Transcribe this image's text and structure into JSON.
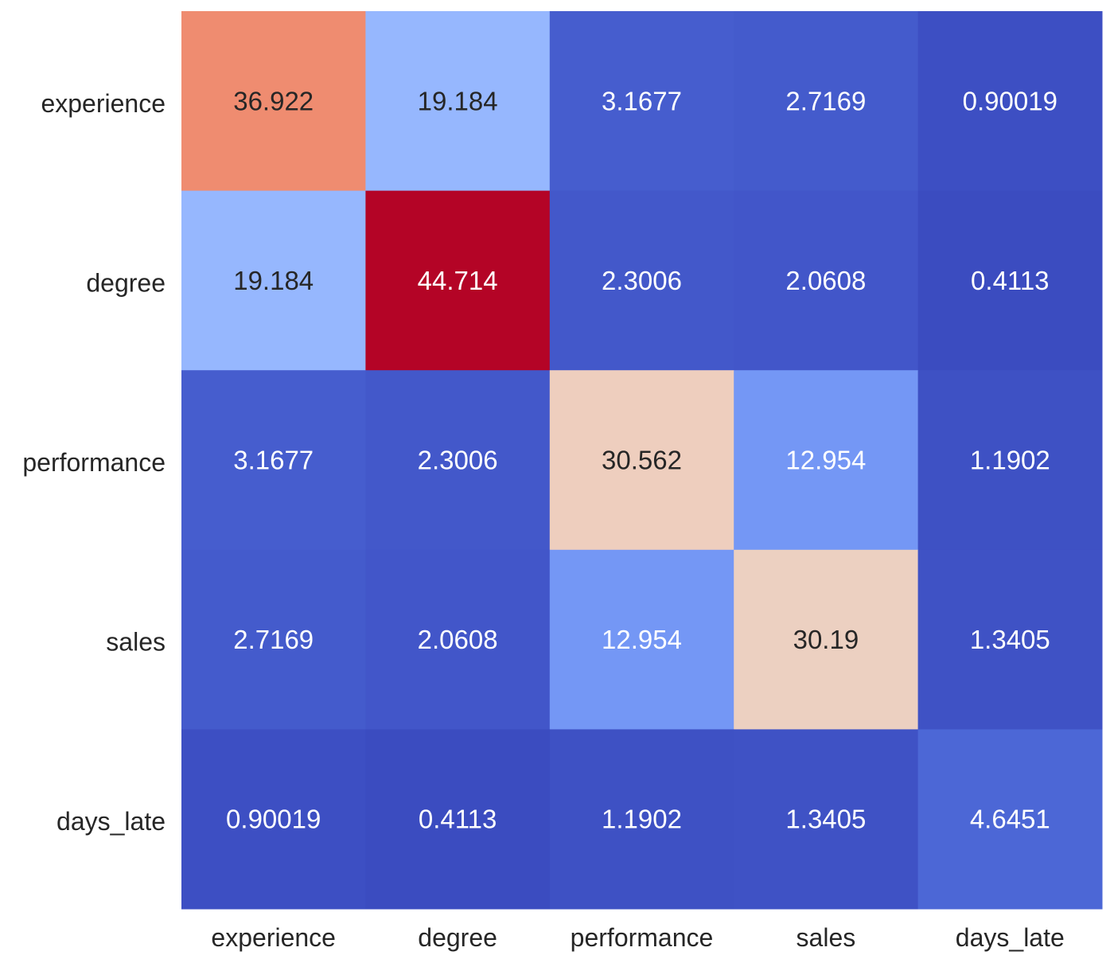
{
  "chart_data": {
    "type": "heatmap",
    "title": "",
    "xlabel": "",
    "ylabel": "",
    "rows": [
      "experience",
      "degree",
      "performance",
      "sales",
      "days_late"
    ],
    "columns": [
      "experience",
      "degree",
      "performance",
      "sales",
      "days_late"
    ],
    "values": [
      [
        "36.922",
        "19.184",
        "3.1677",
        "2.7169",
        "0.90019"
      ],
      [
        "19.184",
        "44.714",
        "2.3006",
        "2.0608",
        "0.4113"
      ],
      [
        "3.1677",
        "2.3006",
        "30.562",
        "12.954",
        "1.1902"
      ],
      [
        "2.7169",
        "2.0608",
        "12.954",
        "30.19",
        "1.3405"
      ],
      [
        "0.90019",
        "0.4113",
        "1.1902",
        "1.3405",
        "4.6451"
      ]
    ],
    "colormap": "coolwarm",
    "color_range": [
      0.4113,
      44.714
    ],
    "colorbar": false,
    "annotations": true,
    "colors": {
      "dark_text": "#262626",
      "light_text": "#ffffff"
    }
  }
}
